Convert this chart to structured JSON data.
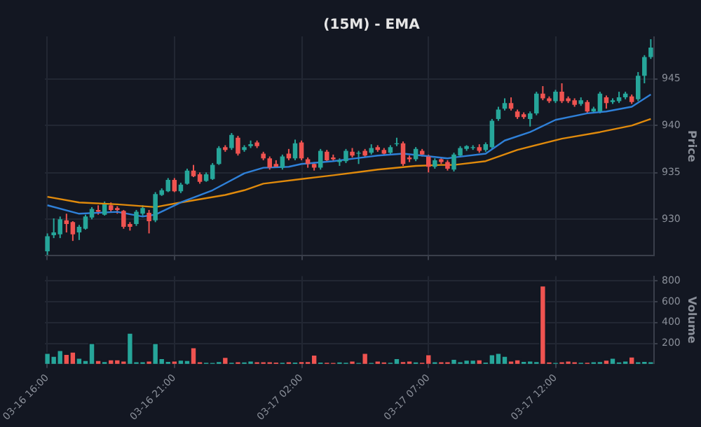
{
  "chart_data": [
    {
      "type": "candlestick",
      "title": "(15M) - EMA",
      "ylabel": "Price",
      "grid": true,
      "tick_labels": "y",
      "marker": "none",
      "x": [
        "--03-16T16:00",
        "--03-16T16:15",
        "--03-16T16:30",
        "--03-16T16:45",
        "--03-16T17:00",
        "--03-16T17:15",
        "--03-16T17:30",
        "--03-16T17:45",
        "--03-16T18:00",
        "--03-16T18:15",
        "--03-16T18:30",
        "--03-16T18:45",
        "--03-16T19:00",
        "--03-16T19:15",
        "--03-16T19:30",
        "--03-16T19:45",
        "--03-16T20:00",
        "--03-16T20:15",
        "--03-16T20:30",
        "--03-16T20:45",
        "--03-16T21:00",
        "--03-16T21:15",
        "--03-16T21:30",
        "--03-16T21:45",
        "--03-16T22:00",
        "--03-16T22:15",
        "--03-16T22:30",
        "--03-16T22:45",
        "--03-16T23:00",
        "--03-16T23:15",
        "--03-16T23:30",
        "--03-16T23:45",
        "--03-17T00:00",
        "--03-17T00:15",
        "--03-17T00:30",
        "--03-17T00:45",
        "--03-17T01:00",
        "--03-17T01:15",
        "--03-17T01:30",
        "--03-17T01:45",
        "--03-17T02:00",
        "--03-17T02:15",
        "--03-17T02:30",
        "--03-17T02:45",
        "--03-17T03:00",
        "--03-17T03:15",
        "--03-17T03:30",
        "--03-17T03:45",
        "--03-17T04:00",
        "--03-17T04:15",
        "--03-17T04:30",
        "--03-17T04:45",
        "--03-17T05:00",
        "--03-17T05:15",
        "--03-17T05:30",
        "--03-17T05:45",
        "--03-17T06:00",
        "--03-17T06:15",
        "--03-17T06:30",
        "--03-17T06:45",
        "--03-17T07:00",
        "--03-17T07:15",
        "--03-17T07:30",
        "--03-17T07:45",
        "--03-17T08:00",
        "--03-17T08:15",
        "--03-17T08:30",
        "--03-17T08:45",
        "--03-17T09:00",
        "--03-17T09:15",
        "--03-17T09:30",
        "--03-17T09:45",
        "--03-17T10:00",
        "--03-17T10:15",
        "--03-17T10:30",
        "--03-17T10:45",
        "--03-17T11:00",
        "--03-17T11:15",
        "--03-17T11:30",
        "--03-17T11:45",
        "--03-17T12:00",
        "--03-17T12:15",
        "--03-17T12:30",
        "--03-17T12:45",
        "--03-17T13:00",
        "--03-17T13:15",
        "--03-17T13:30",
        "--03-17T13:45",
        "--03-17T14:00",
        "--03-17T14:15",
        "--03-17T14:30",
        "--03-17T14:45",
        "--03-17T15:00",
        "--03-17T15:15",
        "--03-17T15:30",
        "--03-17T15:45"
      ],
      "ohlc": [
        [
          926.6,
          928.5,
          926.2,
          928.2
        ],
        [
          928.3,
          930.1,
          928.0,
          928.6
        ],
        [
          928.4,
          930.3,
          928.0,
          930.0
        ],
        [
          929.9,
          930.6,
          928.6,
          929.5
        ],
        [
          929.7,
          929.8,
          927.7,
          928.4
        ],
        [
          928.6,
          929.4,
          927.8,
          929.2
        ],
        [
          929.0,
          930.5,
          928.9,
          930.3
        ],
        [
          930.2,
          931.3,
          930.0,
          931.1
        ],
        [
          931.0,
          931.5,
          930.5,
          930.8
        ],
        [
          930.5,
          931.9,
          930.4,
          931.6
        ],
        [
          931.5,
          931.8,
          930.8,
          931.0
        ],
        [
          931.2,
          931.4,
          930.6,
          931.0
        ],
        [
          930.9,
          931.0,
          929.0,
          929.2
        ],
        [
          929.5,
          929.7,
          928.8,
          929.2
        ],
        [
          929.5,
          931.0,
          929.3,
          930.8
        ],
        [
          930.6,
          931.5,
          930.4,
          931.2
        ],
        [
          930.7,
          931.0,
          928.5,
          929.8
        ],
        [
          929.9,
          932.9,
          929.7,
          932.7
        ],
        [
          932.6,
          933.3,
          932.5,
          933.1
        ],
        [
          933.0,
          934.4,
          932.9,
          934.2
        ],
        [
          934.2,
          934.4,
          932.9,
          933.0
        ],
        [
          933.0,
          933.9,
          932.8,
          933.7
        ],
        [
          933.8,
          935.4,
          933.7,
          935.2
        ],
        [
          935.2,
          935.8,
          934.5,
          934.6
        ],
        [
          934.8,
          935.0,
          933.8,
          934.0
        ],
        [
          934.1,
          935.0,
          934.0,
          934.8
        ],
        [
          934.3,
          936.0,
          934.2,
          935.8
        ],
        [
          935.9,
          937.8,
          935.8,
          937.6
        ],
        [
          937.7,
          937.9,
          937.2,
          937.4
        ],
        [
          937.6,
          939.2,
          937.4,
          939.0
        ],
        [
          938.7,
          938.9,
          936.8,
          937.0
        ],
        [
          937.4,
          937.9,
          937.2,
          937.7
        ],
        [
          937.8,
          938.4,
          937.6,
          938.0
        ],
        [
          938.2,
          938.4,
          937.6,
          937.8
        ],
        [
          937.0,
          937.2,
          936.3,
          936.5
        ],
        [
          936.5,
          936.7,
          935.3,
          935.5
        ],
        [
          935.9,
          936.3,
          935.5,
          935.6
        ],
        [
          935.5,
          936.9,
          935.3,
          936.7
        ],
        [
          937.0,
          937.5,
          936.3,
          936.5
        ],
        [
          936.5,
          938.5,
          936.3,
          938.1
        ],
        [
          938.2,
          938.4,
          936.3,
          936.5
        ],
        [
          936.4,
          936.6,
          935.5,
          935.9
        ],
        [
          935.9,
          936.1,
          935.2,
          935.5
        ],
        [
          935.5,
          937.5,
          935.3,
          937.3
        ],
        [
          937.2,
          937.4,
          936.1,
          936.3
        ],
        [
          936.6,
          936.9,
          936.2,
          936.4
        ],
        [
          936.1,
          936.5,
          935.7,
          936.3
        ],
        [
          936.2,
          937.5,
          936.0,
          937.3
        ],
        [
          937.2,
          937.6,
          936.6,
          936.8
        ],
        [
          937.0,
          937.3,
          935.9,
          937.1
        ],
        [
          937.3,
          937.5,
          936.6,
          936.8
        ],
        [
          937.1,
          938.0,
          936.9,
          937.6
        ],
        [
          937.7,
          937.9,
          937.2,
          937.4
        ],
        [
          937.4,
          937.6,
          936.8,
          937.0
        ],
        [
          937.1,
          937.9,
          936.9,
          937.7
        ],
        [
          938.0,
          938.7,
          937.8,
          938.1
        ],
        [
          938.1,
          938.3,
          935.7,
          935.9
        ],
        [
          936.6,
          936.8,
          936.1,
          936.4
        ],
        [
          936.4,
          937.7,
          936.2,
          937.5
        ],
        [
          937.3,
          937.5,
          936.7,
          936.9
        ],
        [
          936.7,
          936.9,
          935.0,
          935.6
        ],
        [
          935.6,
          936.5,
          935.4,
          936.3
        ],
        [
          936.4,
          936.6,
          935.9,
          936.1
        ],
        [
          936.1,
          936.3,
          935.2,
          935.4
        ],
        [
          935.3,
          937.1,
          935.1,
          936.9
        ],
        [
          936.8,
          937.8,
          936.6,
          937.6
        ],
        [
          937.5,
          937.9,
          937.3,
          937.8
        ],
        [
          937.6,
          937.9,
          937.4,
          937.7
        ],
        [
          937.7,
          938.0,
          937.1,
          937.3
        ],
        [
          937.4,
          938.2,
          937.2,
          938.0
        ],
        [
          937.7,
          940.7,
          937.5,
          940.5
        ],
        [
          940.7,
          942.0,
          940.5,
          941.7
        ],
        [
          941.8,
          942.9,
          941.6,
          942.4
        ],
        [
          942.4,
          943.0,
          941.6,
          941.8
        ],
        [
          941.5,
          941.7,
          940.7,
          940.9
        ],
        [
          941.2,
          941.4,
          940.7,
          940.9
        ],
        [
          940.7,
          941.5,
          939.9,
          941.3
        ],
        [
          941.3,
          943.6,
          941.1,
          943.4
        ],
        [
          943.4,
          944.2,
          942.7,
          942.9
        ],
        [
          942.9,
          943.1,
          942.4,
          942.6
        ],
        [
          942.6,
          943.8,
          942.4,
          943.6
        ],
        [
          943.6,
          944.5,
          942.4,
          942.6
        ],
        [
          942.9,
          943.1,
          942.4,
          942.6
        ],
        [
          942.7,
          942.9,
          942.0,
          942.2
        ],
        [
          942.3,
          943.0,
          942.1,
          942.7
        ],
        [
          942.5,
          942.7,
          941.3,
          941.5
        ],
        [
          941.5,
          942.0,
          941.3,
          941.8
        ],
        [
          941.5,
          943.6,
          941.3,
          943.4
        ],
        [
          943.0,
          943.2,
          941.8,
          942.4
        ],
        [
          942.5,
          942.9,
          942.3,
          942.7
        ],
        [
          942.6,
          943.6,
          942.4,
          943.0
        ],
        [
          943.0,
          943.6,
          942.8,
          943.4
        ],
        [
          943.1,
          943.3,
          942.3,
          942.5
        ],
        [
          942.8,
          945.7,
          942.6,
          945.3
        ],
        [
          945.3,
          947.5,
          944.5,
          947.3
        ],
        [
          947.3,
          949.2,
          947.1,
          948.3
        ]
      ],
      "colors": [
        "#26a69a",
        "#26a69a",
        "#26a69a",
        "#ef5350",
        "#ef5350",
        "#26a69a",
        "#26a69a",
        "#26a69a",
        "#ef5350",
        "#26a69a",
        "#ef5350",
        "#ef5350",
        "#ef5350",
        "#ef5350",
        "#26a69a",
        "#26a69a",
        "#ef5350",
        "#26a69a",
        "#26a69a",
        "#26a69a",
        "#ef5350",
        "#26a69a",
        "#26a69a",
        "#ef5350",
        "#ef5350",
        "#26a69a",
        "#26a69a",
        "#26a69a",
        "#ef5350",
        "#26a69a",
        "#ef5350",
        "#26a69a",
        "#26a69a",
        "#ef5350",
        "#ef5350",
        "#ef5350",
        "#ef5350",
        "#26a69a",
        "#ef5350",
        "#26a69a",
        "#ef5350",
        "#ef5350",
        "#ef5350",
        "#26a69a",
        "#ef5350",
        "#ef5350",
        "#26a69a",
        "#26a69a",
        "#ef5350",
        "#26a69a",
        "#ef5350",
        "#26a69a",
        "#ef5350",
        "#ef5350",
        "#26a69a",
        "#26a69a",
        "#ef5350",
        "#ef5350",
        "#26a69a",
        "#ef5350",
        "#ef5350",
        "#26a69a",
        "#ef5350",
        "#ef5350",
        "#26a69a",
        "#26a69a",
        "#26a69a",
        "#26a69a",
        "#ef5350",
        "#26a69a",
        "#26a69a",
        "#26a69a",
        "#26a69a",
        "#ef5350",
        "#ef5350",
        "#ef5350",
        "#26a69a",
        "#26a69a",
        "#ef5350",
        "#ef5350",
        "#26a69a",
        "#ef5350",
        "#ef5350",
        "#ef5350",
        "#26a69a",
        "#ef5350",
        "#26a69a",
        "#26a69a",
        "#ef5350",
        "#26a69a",
        "#26a69a",
        "#26a69a",
        "#ef5350",
        "#26a69a",
        "#26a69a",
        "#26a69a"
      ],
      "series": [
        {
          "type": "line",
          "color": "#2f80d8",
          "x": [
            "--03-16T16:00",
            "--03-16T17:15",
            "--03-16T18:45",
            "--03-16T19:45",
            "--03-16T20:15",
            "--03-16T21:15",
            "--03-16T22:30",
            "--03-16T23:45",
            "--03-17T00:30",
            "--03-17T01:30",
            "--03-17T02:00",
            "--03-17T03:15",
            "--03-17T05:00",
            "--03-17T06:00",
            "--03-17T06:45",
            "--03-17T07:45",
            "--03-17T08:00",
            "--03-17T09:15",
            "--03-17T10:00",
            "--03-17T11:00",
            "--03-17T12:00",
            "--03-17T13:15",
            "--03-17T14:00",
            "--03-17T15:00",
            "--03-17T15:45"
          ],
          "values": [
            931.5,
            930.6,
            930.8,
            930.3,
            930.5,
            931.8,
            933.1,
            934.9,
            935.5,
            935.6,
            935.9,
            936.2,
            936.8,
            937.0,
            936.8,
            936.5,
            936.6,
            937.0,
            938.4,
            939.3,
            940.6,
            941.3,
            941.5,
            942.0,
            943.3
          ]
        },
        {
          "type": "line",
          "color": "#e08a0c",
          "x": [
            "--03-16T16:00",
            "--03-16T17:15",
            "--03-16T18:45",
            "--03-16T20:15",
            "--03-16T21:15",
            "--03-16T23:00",
            "--03-16T23:45",
            "--03-17T00:30",
            "--03-17T02:00",
            "--03-17T03:15",
            "--03-17T05:00",
            "--03-17T06:30",
            "--03-17T07:30",
            "--03-17T08:00",
            "--03-17T09:15",
            "--03-17T10:30",
            "--03-17T12:15",
            "--03-17T13:45",
            "--03-17T15:00",
            "--03-17T15:45"
          ],
          "values": [
            932.4,
            931.8,
            931.6,
            931.3,
            931.8,
            932.6,
            933.1,
            933.8,
            934.3,
            934.7,
            935.3,
            935.7,
            935.8,
            935.8,
            936.2,
            937.4,
            938.6,
            939.3,
            940.0,
            940.7
          ]
        }
      ],
      "xlim": [
        "--03-16T15:54",
        "--03-17T15:51"
      ],
      "xticks": [
        {
          "value": "--03-16T16:00",
          "label": "03-16 16:00"
        },
        {
          "value": "--03-16T21:00",
          "label": "03-16 21:00"
        },
        {
          "value": "--03-17T02:00",
          "label": "03-17 02:00"
        },
        {
          "value": "--03-17T07:00",
          "label": "03-17 07:00"
        },
        {
          "value": "--03-17T12:00",
          "label": "03-17 12:00"
        }
      ],
      "ylim": [
        926.1,
        949.5
      ],
      "yticks": [
        930,
        935,
        940,
        945
      ]
    },
    {
      "type": "bar",
      "ylabel": "Volume",
      "grid": true,
      "x": [
        "--03-16T16:00",
        "--03-16T16:15",
        "--03-16T16:30",
        "--03-16T16:45",
        "--03-16T17:00",
        "--03-16T17:15",
        "--03-16T17:30",
        "--03-16T17:45",
        "--03-16T18:00",
        "--03-16T18:15",
        "--03-16T18:30",
        "--03-16T18:45",
        "--03-16T19:00",
        "--03-16T19:15",
        "--03-16T19:30",
        "--03-16T19:45",
        "--03-16T20:00",
        "--03-16T20:15",
        "--03-16T20:30",
        "--03-16T20:45",
        "--03-16T21:00",
        "--03-16T21:15",
        "--03-16T21:30",
        "--03-16T21:45",
        "--03-16T22:00",
        "--03-16T22:15",
        "--03-16T22:30",
        "--03-16T22:45",
        "--03-16T23:00",
        "--03-16T23:15",
        "--03-16T23:30",
        "--03-16T23:45",
        "--03-17T00:00",
        "--03-17T00:15",
        "--03-17T00:30",
        "--03-17T00:45",
        "--03-17T01:00",
        "--03-17T01:15",
        "--03-17T01:30",
        "--03-17T01:45",
        "--03-17T02:00",
        "--03-17T02:15",
        "--03-17T02:30",
        "--03-17T02:45",
        "--03-17T03:00",
        "--03-17T03:15",
        "--03-17T03:30",
        "--03-17T03:45",
        "--03-17T04:00",
        "--03-17T04:15",
        "--03-17T04:30",
        "--03-17T04:45",
        "--03-17T05:00",
        "--03-17T05:15",
        "--03-17T05:30",
        "--03-17T05:45",
        "--03-17T06:00",
        "--03-17T06:15",
        "--03-17T06:30",
        "--03-17T06:45",
        "--03-17T07:00",
        "--03-17T07:15",
        "--03-17T07:30",
        "--03-17T07:45",
        "--03-17T08:00",
        "--03-17T08:15",
        "--03-17T08:30",
        "--03-17T08:45",
        "--03-17T09:00",
        "--03-17T09:15",
        "--03-17T09:30",
        "--03-17T09:45",
        "--03-17T10:00",
        "--03-17T10:15",
        "--03-17T10:30",
        "--03-17T10:45",
        "--03-17T11:00",
        "--03-17T11:15",
        "--03-17T11:30",
        "--03-17T11:45",
        "--03-17T12:00",
        "--03-17T12:15",
        "--03-17T12:30",
        "--03-17T12:45",
        "--03-17T13:00",
        "--03-17T13:15",
        "--03-17T13:30",
        "--03-17T13:45",
        "--03-17T14:00",
        "--03-17T14:15",
        "--03-17T14:30",
        "--03-17T14:45",
        "--03-17T15:00",
        "--03-17T15:15",
        "--03-17T15:30",
        "--03-17T15:45"
      ],
      "values": [
        106,
        77,
        133,
        95,
        117,
        58,
        36,
        200,
        36,
        25,
        43,
        43,
        31,
        300,
        21,
        21,
        31,
        200,
        55,
        28,
        31,
        39,
        36,
        159,
        21,
        10,
        7,
        25,
        66,
        10,
        21,
        17,
        31,
        21,
        21,
        21,
        14,
        10,
        21,
        14,
        25,
        25,
        88,
        14,
        10,
        7,
        17,
        10,
        31,
        7,
        106,
        7,
        31,
        17,
        10,
        55,
        25,
        31,
        17,
        10,
        91,
        21,
        21,
        21,
        47,
        21,
        39,
        39,
        43,
        14,
        91,
        106,
        77,
        31,
        43,
        28,
        31,
        25,
        758,
        17,
        7,
        21,
        31,
        21,
        10,
        10,
        21,
        25,
        39,
        58,
        17,
        31,
        70,
        21,
        28,
        21
      ],
      "colors": [
        "#26a69a",
        "#26a69a",
        "#26a69a",
        "#ef5350",
        "#ef5350",
        "#26a69a",
        "#26a69a",
        "#26a69a",
        "#ef5350",
        "#26a69a",
        "#ef5350",
        "#ef5350",
        "#ef5350",
        "#26a69a",
        "#26a69a",
        "#26a69a",
        "#ef5350",
        "#26a69a",
        "#26a69a",
        "#26a69a",
        "#ef5350",
        "#26a69a",
        "#26a69a",
        "#ef5350",
        "#ef5350",
        "#26a69a",
        "#26a69a",
        "#26a69a",
        "#ef5350",
        "#26a69a",
        "#ef5350",
        "#26a69a",
        "#26a69a",
        "#ef5350",
        "#ef5350",
        "#ef5350",
        "#ef5350",
        "#26a69a",
        "#ef5350",
        "#26a69a",
        "#ef5350",
        "#ef5350",
        "#ef5350",
        "#26a69a",
        "#ef5350",
        "#ef5350",
        "#26a69a",
        "#26a69a",
        "#ef5350",
        "#26a69a",
        "#ef5350",
        "#26a69a",
        "#ef5350",
        "#ef5350",
        "#26a69a",
        "#26a69a",
        "#ef5350",
        "#ef5350",
        "#26a69a",
        "#ef5350",
        "#ef5350",
        "#26a69a",
        "#ef5350",
        "#ef5350",
        "#26a69a",
        "#26a69a",
        "#26a69a",
        "#26a69a",
        "#ef5350",
        "#26a69a",
        "#26a69a",
        "#26a69a",
        "#26a69a",
        "#ef5350",
        "#ef5350",
        "#26a69a",
        "#26a69a",
        "#26a69a",
        "#ef5350",
        "#ef5350",
        "#26a69a",
        "#ef5350",
        "#ef5350",
        "#ef5350",
        "#26a69a",
        "#ef5350",
        "#26a69a",
        "#26a69a",
        "#ef5350",
        "#26a69a",
        "#26a69a",
        "#26a69a",
        "#ef5350",
        "#26a69a",
        "#26a69a",
        "#26a69a"
      ],
      "xlim": [
        "--03-16T15:54",
        "--03-17T15:51"
      ],
      "xticks": [
        {
          "value": "--03-16T16:00",
          "label": "03-16 16:00"
        },
        {
          "value": "--03-16T21:00",
          "label": "03-16 21:00"
        },
        {
          "value": "--03-17T02:00",
          "label": "03-17 02:00"
        },
        {
          "value": "--03-17T07:00",
          "label": "03-17 07:00"
        },
        {
          "value": "--03-17T12:00",
          "label": "03-17 12:00"
        }
      ],
      "ylim": [
        0,
        850
      ],
      "yticks": [
        200,
        400,
        600,
        800
      ]
    }
  ]
}
